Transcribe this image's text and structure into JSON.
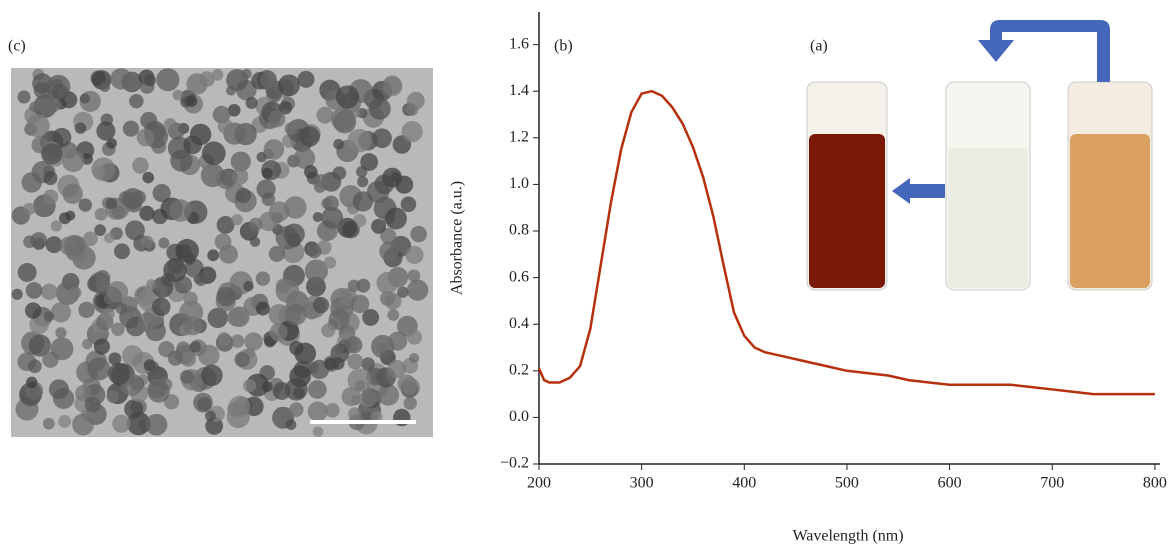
{
  "panel_c": {
    "label": "(c)"
  },
  "chart_data": {
    "type": "line",
    "panel_label": "(b)",
    "inset_label": "(a)",
    "x_label": "Wavelength (nm)",
    "y_label": "Absorbance (a.u.)",
    "x": [
      200,
      205,
      210,
      220,
      230,
      240,
      250,
      260,
      270,
      280,
      290,
      300,
      310,
      320,
      330,
      340,
      350,
      360,
      370,
      380,
      390,
      400,
      410,
      420,
      440,
      460,
      480,
      500,
      520,
      540,
      560,
      580,
      600,
      620,
      640,
      660,
      680,
      700,
      720,
      740,
      760,
      780,
      800
    ],
    "series": [
      {
        "color": "#b5300c",
        "values": [
          0.21,
          0.16,
          0.15,
          0.15,
          0.17,
          0.22,
          0.38,
          0.65,
          0.92,
          1.15,
          1.31,
          1.39,
          1.4,
          1.38,
          1.33,
          1.26,
          1.16,
          1.03,
          0.86,
          0.65,
          0.45,
          0.35,
          0.3,
          0.28,
          0.26,
          0.24,
          0.22,
          0.2,
          0.19,
          0.18,
          0.16,
          0.15,
          0.14,
          0.14,
          0.14,
          0.14,
          0.13,
          0.12,
          0.11,
          0.1,
          0.1,
          0.1,
          0.1
        ]
      }
    ],
    "xlim": [
      200,
      805
    ],
    "ylim": [
      -0.2,
      1.74
    ],
    "xticks": [
      200,
      300,
      400,
      500,
      600,
      700,
      800
    ],
    "yticks": [
      {
        "value": -0.2,
        "label": "−0.2"
      },
      {
        "value": 0,
        "label": "0.0"
      },
      0.2,
      0.4,
      0.6,
      0.8,
      {
        "value": 1,
        "label": "1.0"
      },
      1.2,
      1.4,
      1.6
    ]
  }
}
